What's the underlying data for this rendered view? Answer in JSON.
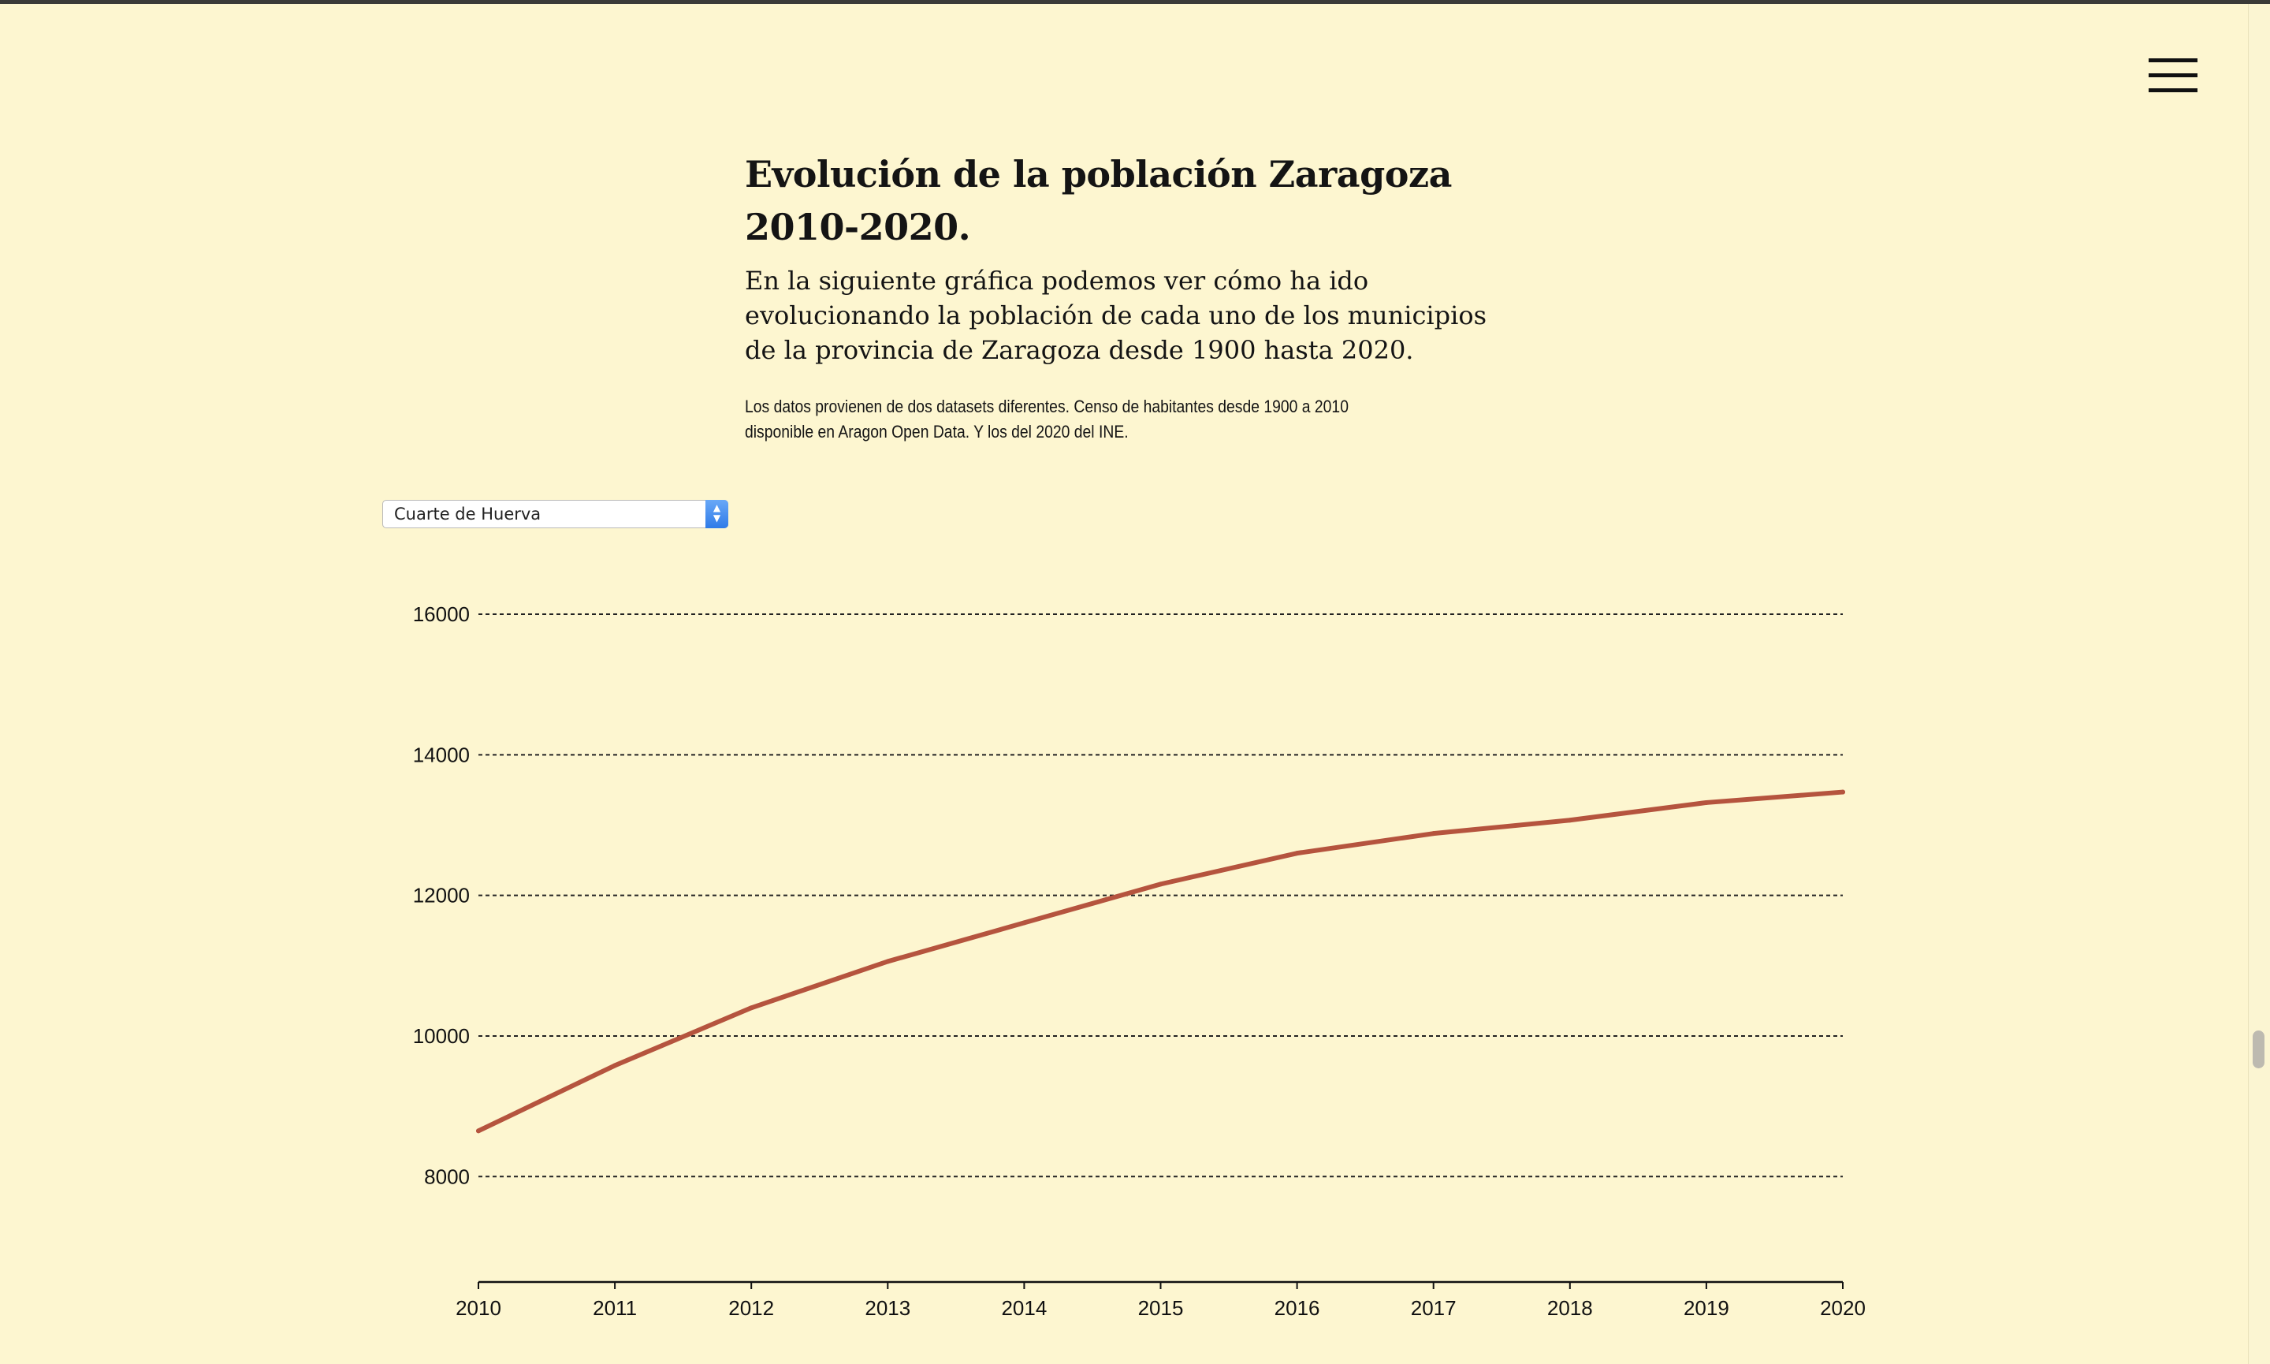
{
  "header": {
    "menu_icon": "hamburger-menu-icon"
  },
  "intro": {
    "title": "Evolución de la población Zaragoza 2010-2020.",
    "lead": "En la siguiente gráfica podemos ver cómo ha ido evolucionando la población de cada uno de los municipios de la provincia de Zaragoza desde 1900 hasta 2020.",
    "note": "Los datos provienen de dos datasets diferentes. Censo de habitantes desde 1900 a 2010 disponible en Aragon Open Data. Y los del 2020 del INE."
  },
  "municipality_select": {
    "selected": "Cuarte de Huerva",
    "arrow_up": "▲",
    "arrow_down": "▼"
  },
  "colors": {
    "background": "#fdf6d0",
    "line": "#b5543e",
    "text": "#141414"
  },
  "chart_data": {
    "type": "line",
    "title": "",
    "xlabel": "",
    "ylabel": "",
    "x": [
      2010,
      2011,
      2012,
      2013,
      2014,
      2015,
      2016,
      2017,
      2018,
      2019,
      2020
    ],
    "series": [
      {
        "values": [
          8650,
          9580,
          10400,
          11060,
          11610,
          12160,
          12600,
          12880,
          13070,
          13320,
          13470
        ]
      }
    ],
    "xlim": [
      2010,
      2020
    ],
    "ylim": [
      6500,
      16000
    ],
    "y_ticks": [
      8000,
      10000,
      12000,
      14000,
      16000
    ],
    "x_ticks": [
      2010,
      2011,
      2012,
      2013,
      2014,
      2015,
      2016,
      2017,
      2018,
      2019,
      2020
    ],
    "grid": "horizontal dashed",
    "legend": "none"
  }
}
